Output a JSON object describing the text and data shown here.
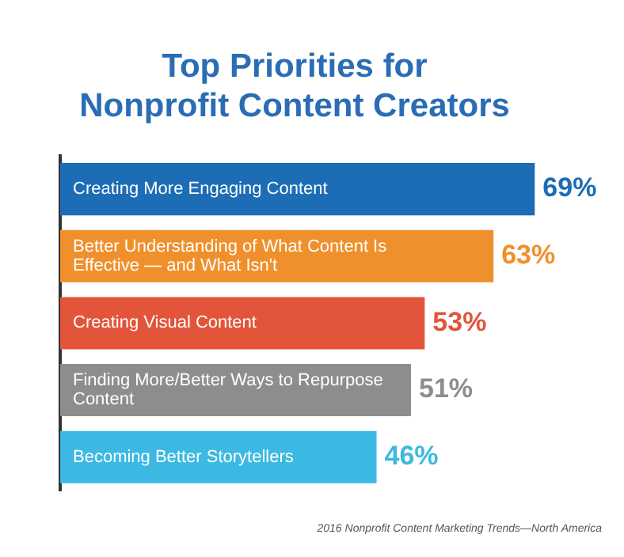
{
  "chart_data": {
    "type": "bar",
    "orientation": "horizontal",
    "title": "Top Priorities for\nNonprofit Content Creators",
    "categories": [
      "Creating More Engaging Content",
      "Better Understanding of What Content Is Effective — and What Isn't",
      "Creating Visual Content",
      "Finding More/Better Ways to Repurpose Content",
      "Becoming Better Storytellers"
    ],
    "values": [
      69,
      63,
      53,
      51,
      46
    ],
    "colors": [
      "#1c6db5",
      "#f0902c",
      "#e2553a",
      "#8d8d8d",
      "#3cb9e2"
    ],
    "value_labels": [
      "69%",
      "63%",
      "53%",
      "51%",
      "46%"
    ],
    "legend": false,
    "annotations": [
      "2016 Nonprofit Content Marketing Trends—North America"
    ]
  }
}
